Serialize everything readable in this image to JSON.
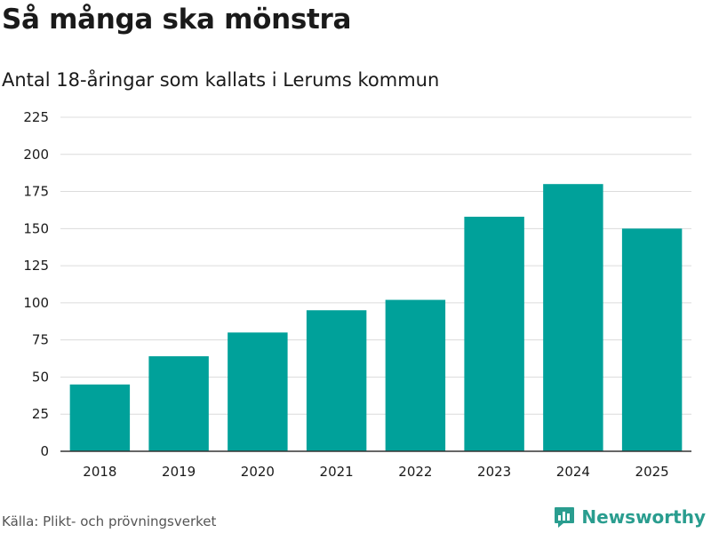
{
  "title": "Så många ska mönstra",
  "subtitle": "Antal 18-åringar som kallats i Lerums kommun",
  "source": "Källa: Plikt- och prövningsverket",
  "brand": {
    "name": "Newsworthy",
    "icon": "newsworthy-logo-icon",
    "color": "#2a9d8f"
  },
  "chart_data": {
    "type": "bar",
    "categories": [
      "2018",
      "2019",
      "2020",
      "2021",
      "2022",
      "2023",
      "2024",
      "2025"
    ],
    "values": [
      45,
      64,
      80,
      95,
      102,
      158,
      180,
      150
    ],
    "yticks": [
      "0",
      "25",
      "50",
      "75",
      "100",
      "125",
      "150",
      "175",
      "200",
      "225"
    ],
    "ylim": [
      0,
      225
    ],
    "xlabel": "",
    "ylabel": "",
    "bar_color": "#00a19a",
    "grid": true
  }
}
